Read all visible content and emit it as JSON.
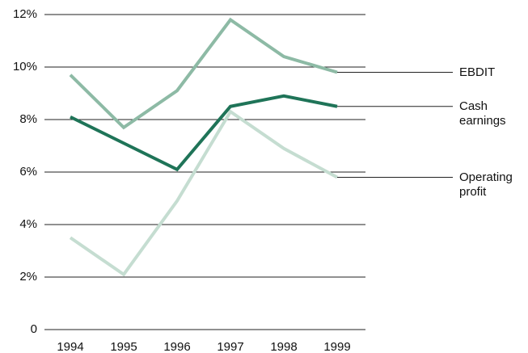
{
  "chart_data": {
    "type": "line",
    "categories": [
      "1994",
      "1995",
      "1996",
      "1997",
      "1998",
      "1999"
    ],
    "series": [
      {
        "name": "EBDIT",
        "color": "#8dbaa5",
        "values": [
          9.7,
          7.7,
          9.1,
          11.8,
          10.4,
          9.8
        ]
      },
      {
        "name": "Cash earnings",
        "color": "#1f7458",
        "values": [
          8.1,
          7.1,
          6.1,
          8.5,
          8.9,
          8.5
        ]
      },
      {
        "name": "Operating profit",
        "color": "#c5ddd1",
        "values": [
          3.5,
          2.1,
          4.9,
          8.3,
          6.9,
          5.8
        ]
      }
    ],
    "ylim": [
      0,
      12
    ],
    "yticks": [
      0,
      {
        "value": 2,
        "label": "2%"
      },
      {
        "value": 4,
        "label": "4%"
      },
      {
        "value": 6,
        "label": "6%"
      },
      {
        "value": 8,
        "label": "8%"
      },
      {
        "value": 10,
        "label": "10%"
      },
      {
        "value": 12,
        "label": "12%"
      }
    ],
    "grid": true
  }
}
